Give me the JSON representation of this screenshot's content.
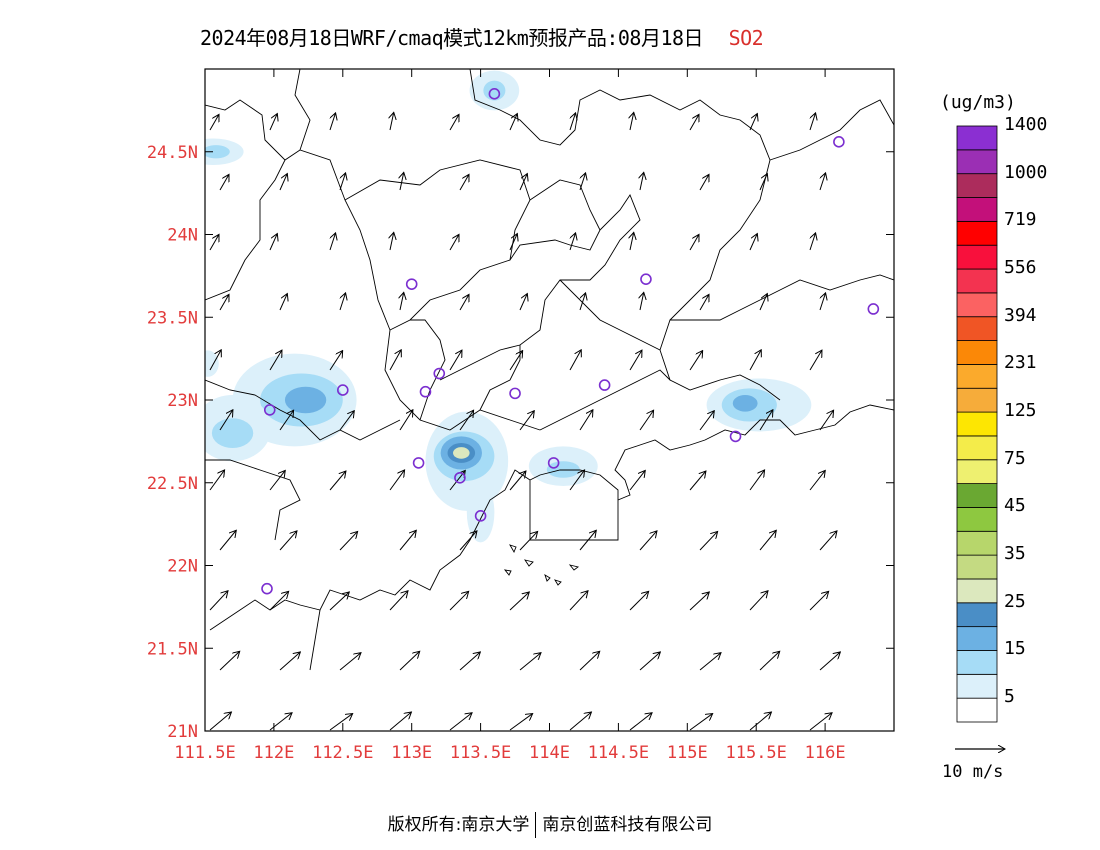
{
  "title": {
    "text": "2024年08月18日WRF/cmaq模式12km预报产品:08月18日",
    "pollutant": "SO2"
  },
  "axes": {
    "lon_ticks": [
      "111.5E",
      "112E",
      "112.5E",
      "113E",
      "113.5E",
      "114E",
      "114.5E",
      "115E",
      "115.5E",
      "116E"
    ],
    "lat_ticks": [
      "21N",
      "21.5N",
      "22N",
      "22.5N",
      "23N",
      "23.5N",
      "24N",
      "24.5N"
    ],
    "lon_range": [
      111.5,
      116.5
    ],
    "lat_range": [
      21.0,
      25.0
    ]
  },
  "legend": {
    "units": "(ug/m3)",
    "colors": [
      "#ffffff",
      "#dcf0fa",
      "#a6dcf6",
      "#6cb1e3",
      "#4a8ec6",
      "#dce8be",
      "#c4da82",
      "#b7d66b",
      "#8ec840",
      "#6aa832",
      "#eef070",
      "#f4ec4a",
      "#fde602",
      "#f6ac3a",
      "#fbaa2c",
      "#fb8807",
      "#f05525",
      "#fb6262",
      "#f33350",
      "#f8103c",
      "#ff0000",
      "#c3107a",
      "#ac2c5c",
      "#9b2fb4",
      "#8b2fd2"
    ],
    "labels": [
      "5",
      "15",
      "25",
      "35",
      "45",
      "75",
      "125",
      "231",
      "394",
      "556",
      "719",
      "1000",
      "1400"
    ]
  },
  "wind_reference": "10 m/s",
  "stations": [
    {
      "lon": 113.6,
      "lat": 24.85
    },
    {
      "lon": 116.1,
      "lat": 24.56
    },
    {
      "lon": 113.0,
      "lat": 23.7
    },
    {
      "lon": 114.7,
      "lat": 23.73
    },
    {
      "lon": 116.35,
      "lat": 23.55
    },
    {
      "lon": 113.2,
      "lat": 23.16
    },
    {
      "lon": 113.1,
      "lat": 23.05
    },
    {
      "lon": 113.75,
      "lat": 23.04
    },
    {
      "lon": 114.4,
      "lat": 23.09
    },
    {
      "lon": 112.5,
      "lat": 23.06
    },
    {
      "lon": 111.97,
      "lat": 22.94
    },
    {
      "lon": 115.35,
      "lat": 22.78
    },
    {
      "lon": 113.05,
      "lat": 22.62
    },
    {
      "lon": 114.03,
      "lat": 22.62
    },
    {
      "lon": 113.35,
      "lat": 22.53
    },
    {
      "lon": 113.5,
      "lat": 22.3
    },
    {
      "lon": 111.95,
      "lat": 21.86
    }
  ],
  "concentration_zones": [
    {
      "lon": 111.56,
      "lat": 24.5,
      "rx": 0.22,
      "ry": 0.08,
      "level": 1
    },
    {
      "lon": 111.58,
      "lat": 24.5,
      "rx": 0.1,
      "ry": 0.04,
      "level": 2
    },
    {
      "lon": 113.6,
      "lat": 24.87,
      "rx": 0.18,
      "ry": 0.12,
      "level": 1
    },
    {
      "lon": 113.6,
      "lat": 24.87,
      "rx": 0.08,
      "ry": 0.06,
      "level": 2
    },
    {
      "lon": 112.15,
      "lat": 23.0,
      "rx": 0.45,
      "ry": 0.28,
      "level": 1
    },
    {
      "lon": 112.2,
      "lat": 23.0,
      "rx": 0.3,
      "ry": 0.16,
      "level": 2
    },
    {
      "lon": 112.23,
      "lat": 23.0,
      "rx": 0.15,
      "ry": 0.08,
      "level": 3
    },
    {
      "lon": 111.7,
      "lat": 22.83,
      "rx": 0.28,
      "ry": 0.2,
      "level": 1
    },
    {
      "lon": 111.7,
      "lat": 22.8,
      "rx": 0.15,
      "ry": 0.09,
      "level": 2
    },
    {
      "lon": 113.4,
      "lat": 22.63,
      "rx": 0.3,
      "ry": 0.3,
      "level": 1
    },
    {
      "lon": 113.38,
      "lat": 22.66,
      "rx": 0.22,
      "ry": 0.15,
      "level": 2
    },
    {
      "lon": 113.36,
      "lat": 22.68,
      "rx": 0.15,
      "ry": 0.1,
      "level": 3
    },
    {
      "lon": 113.36,
      "lat": 22.68,
      "rx": 0.1,
      "ry": 0.06,
      "level": 4
    },
    {
      "lon": 113.36,
      "lat": 22.68,
      "rx": 0.06,
      "ry": 0.035,
      "level": 5
    },
    {
      "lon": 113.5,
      "lat": 22.32,
      "rx": 0.1,
      "ry": 0.18,
      "level": 1
    },
    {
      "lon": 114.1,
      "lat": 22.6,
      "rx": 0.25,
      "ry": 0.12,
      "level": 1
    },
    {
      "lon": 114.1,
      "lat": 22.58,
      "rx": 0.12,
      "ry": 0.05,
      "level": 2
    },
    {
      "lon": 115.52,
      "lat": 22.97,
      "rx": 0.38,
      "ry": 0.16,
      "level": 1
    },
    {
      "lon": 115.45,
      "lat": 22.97,
      "rx": 0.2,
      "ry": 0.1,
      "level": 2
    },
    {
      "lon": 115.42,
      "lat": 22.98,
      "rx": 0.09,
      "ry": 0.05,
      "level": 3
    },
    {
      "lon": 111.52,
      "lat": 23.22,
      "rx": 0.08,
      "ry": 0.08,
      "level": 1
    }
  ],
  "footer": {
    "left": "版权所有:南京大学",
    "right": "南京创蓝科技有限公司"
  }
}
